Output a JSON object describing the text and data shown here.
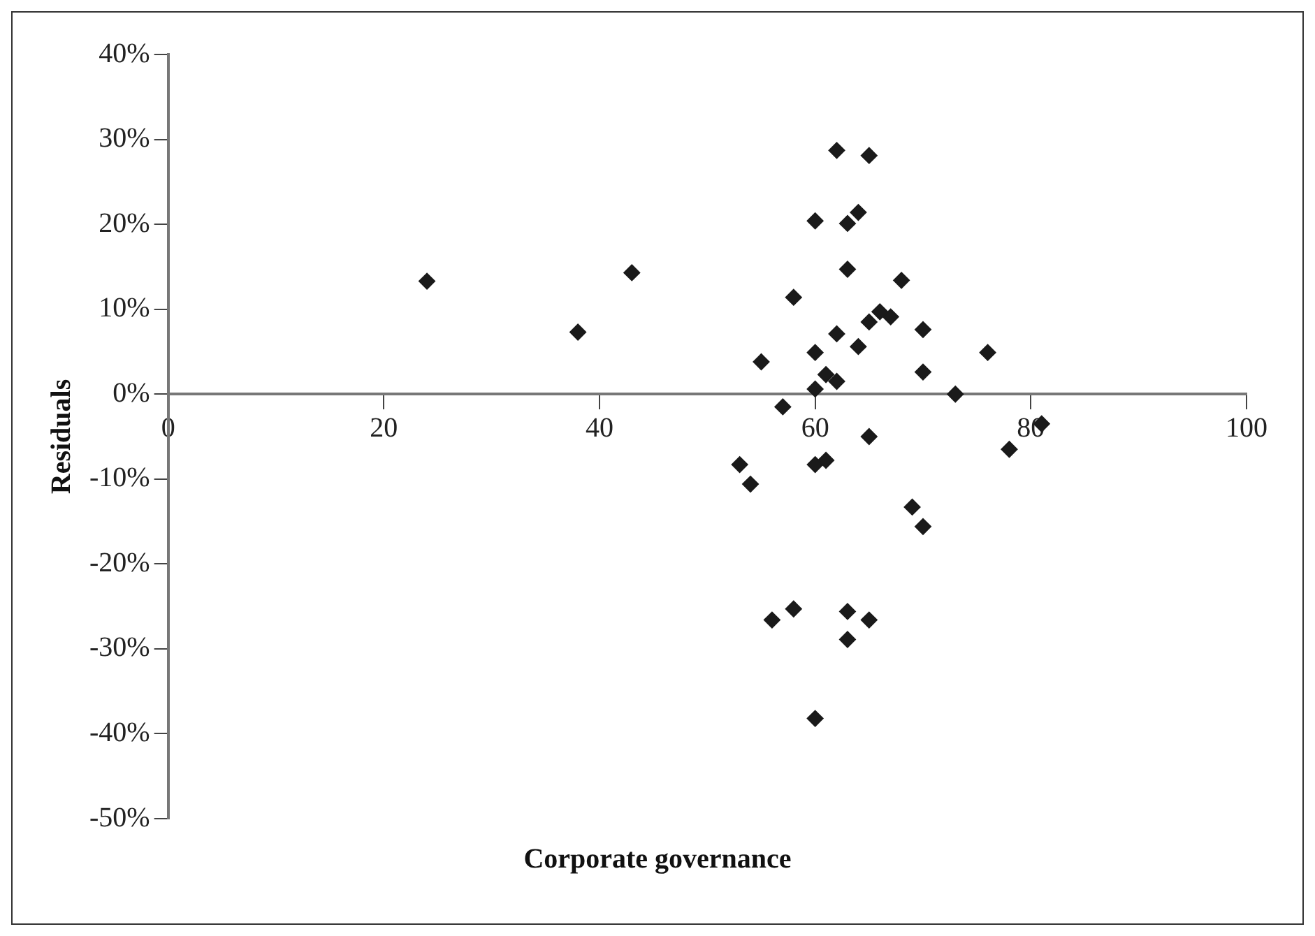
{
  "chart_data": {
    "type": "scatter",
    "xlabel": "Corporate governance",
    "ylabel": "Residuals",
    "xlim": [
      0,
      100
    ],
    "xticks": [
      0,
      20,
      40,
      60,
      80,
      100
    ],
    "ylim": [
      -50,
      40
    ],
    "yticks": [
      {
        "value": -50,
        "label": "-50%"
      },
      {
        "value": -40,
        "label": "-40%"
      },
      {
        "value": -30,
        "label": "-30%"
      },
      {
        "value": -20,
        "label": "-20%"
      },
      {
        "value": -10,
        "label": "-10%"
      },
      {
        "value": 0,
        "label": "0%"
      },
      {
        "value": 10,
        "label": "10%"
      },
      {
        "value": 20,
        "label": "20%"
      },
      {
        "value": 30,
        "label": "30%"
      },
      {
        "value": 40,
        "label": "40%"
      }
    ],
    "grid": false,
    "legend": false,
    "marker": "diamond",
    "series": [
      {
        "color": "#1a1a1a",
        "x": [
          62,
          65,
          60,
          63,
          64,
          63,
          68,
          58,
          66,
          67,
          65,
          62,
          70,
          64,
          60,
          76,
          55,
          61,
          70,
          62,
          60,
          73,
          57,
          81,
          65,
          78,
          53,
          60,
          61,
          54,
          69,
          70,
          56,
          58,
          63,
          65,
          63,
          60,
          24,
          38,
          43
        ],
        "values": [
          28.7,
          28.1,
          20.4,
          20.1,
          21.4,
          14.7,
          13.4,
          11.4,
          9.7,
          9.1,
          8.5,
          7.1,
          7.6,
          5.6,
          4.9,
          4.9,
          3.8,
          2.3,
          2.6,
          1.5,
          0.6,
          0,
          -1.5,
          -3.5,
          -5.0,
          -6.5,
          -8.3,
          -8.3,
          -7.8,
          -10.6,
          -13.3,
          -15.6,
          -26.6,
          -25.3,
          -25.6,
          -26.6,
          -28.9,
          -38.2,
          13.3,
          7.3,
          14.3
        ]
      }
    ]
  }
}
